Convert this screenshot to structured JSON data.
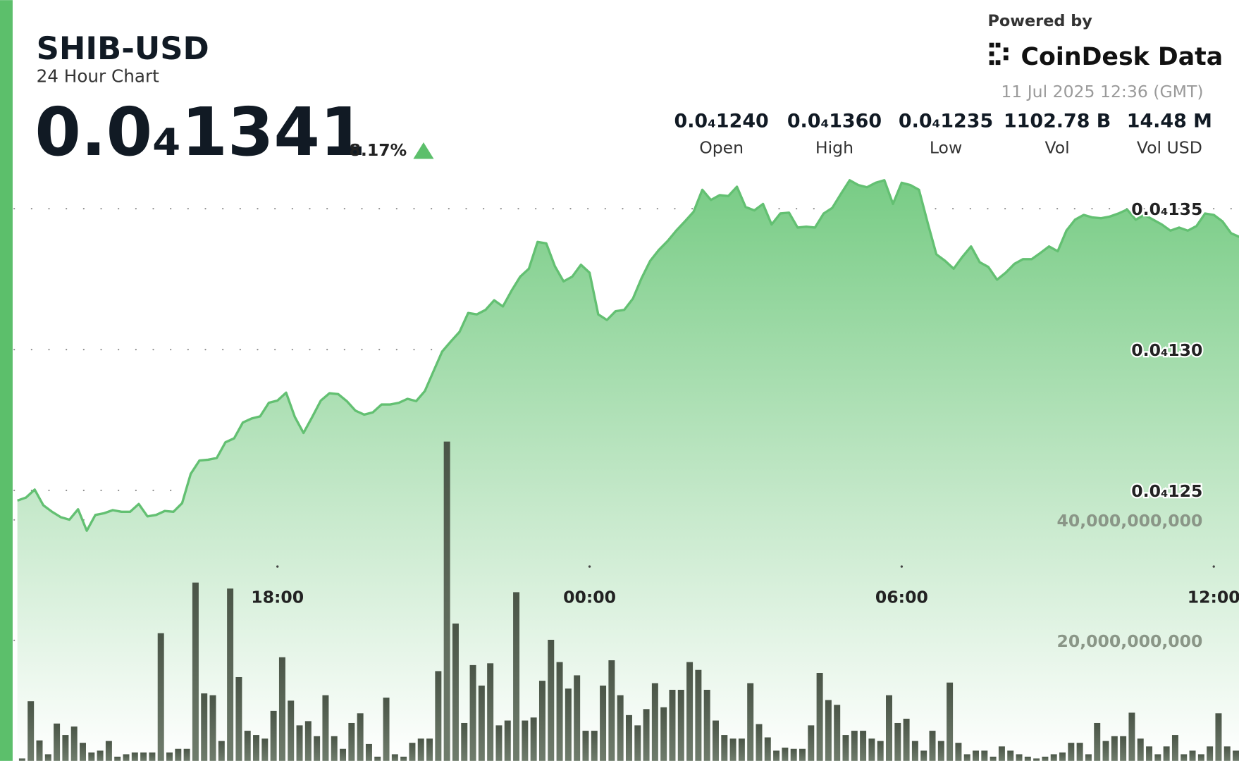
{
  "chart_data": {
    "type": "area",
    "title": "SHIB-USD",
    "subtitle": "24 Hour Chart",
    "price": "0.0₄1341",
    "change": "8.17%",
    "powered_by": "Powered by",
    "brand": "CoinDesk Data",
    "timestamp": "11 Jul 2025 12:36 (GMT)",
    "stats": [
      {
        "value": "0.0₄1240",
        "label": "Open"
      },
      {
        "value": "0.0₄1360",
        "label": "High"
      },
      {
        "value": "0.0₄1235",
        "label": "Low"
      },
      {
        "value": "1102.78 B",
        "label": "Vol"
      },
      {
        "value": "14.48 M",
        "label": "Vol USD"
      }
    ],
    "categories": [
      null,
      null,
      null,
      null,
      null,
      null,
      null,
      null,
      null,
      null,
      null,
      null,
      null,
      null,
      null,
      null,
      null,
      null,
      null,
      null,
      null,
      null,
      null,
      null,
      null,
      null,
      null,
      null,
      null,
      null,
      "18:00",
      null,
      null,
      null,
      null,
      null,
      null,
      null,
      null,
      null,
      null,
      null,
      null,
      null,
      null,
      null,
      null,
      null,
      null,
      null,
      null,
      null,
      null,
      null,
      null,
      null,
      null,
      null,
      null,
      null,
      null,
      null,
      null,
      null,
      null,
      null,
      "00:00",
      null,
      null,
      null,
      null,
      null,
      null,
      null,
      null,
      null,
      null,
      null,
      null,
      null,
      null,
      null,
      null,
      null,
      null,
      null,
      null,
      null,
      null,
      null,
      null,
      null,
      null,
      null,
      null,
      null,
      null,
      null,
      null,
      null,
      null,
      null,
      "06:00",
      null,
      null,
      null,
      null,
      null,
      null,
      null,
      null,
      null,
      null,
      null,
      null,
      null,
      null,
      null,
      null,
      null,
      null,
      null,
      null,
      null,
      null,
      null,
      null,
      null,
      null,
      null,
      null,
      null,
      null,
      null,
      null,
      null,
      null,
      null,
      "12:00",
      null,
      null,
      null
    ],
    "series": [
      {
        "type": "area",
        "color": "#63c072",
        "values": [
          1.2464e-05,
          1.2475e-05,
          1.2503e-05,
          1.2447e-05,
          1.2424e-05,
          1.2405e-05,
          1.2396e-05,
          1.2433e-05,
          1.2357e-05,
          1.2413e-05,
          1.2419e-05,
          1.243e-05,
          1.2424e-05,
          1.2424e-05,
          1.2452e-05,
          1.2408e-05,
          1.2413e-05,
          1.2427e-05,
          1.2424e-05,
          1.2455e-05,
          1.2559e-05,
          1.2606e-05,
          1.2609e-05,
          1.2615e-05,
          1.2671e-05,
          1.2685e-05,
          1.2741e-05,
          1.2755e-05,
          1.2763e-05,
          1.2811e-05,
          1.2819e-05,
          1.2847e-05,
          1.2761e-05,
          1.2704e-05,
          1.276e-05,
          1.2819e-05,
          1.2845e-05,
          1.2842e-05,
          1.2817e-05,
          1.2783e-05,
          1.2769e-05,
          1.2777e-05,
          1.2805e-05,
          1.2805e-05,
          1.2811e-05,
          1.2825e-05,
          1.2817e-05,
          1.2853e-05,
          1.2923e-05,
          1.2993e-05,
          1.3029e-05,
          1.3063e-05,
          1.313e-05,
          1.3125e-05,
          1.3141e-05,
          1.3175e-05,
          1.3153e-05,
          1.3209e-05,
          1.3259e-05,
          1.3287e-05,
          1.3382e-05,
          1.3377e-05,
          1.3296e-05,
          1.3242e-05,
          1.3259e-05,
          1.3301e-05,
          1.3273e-05,
          1.3125e-05,
          1.3105e-05,
          1.3136e-05,
          1.3141e-05,
          1.3181e-05,
          1.3254e-05,
          1.3315e-05,
          1.3354e-05,
          1.3385e-05,
          1.3422e-05,
          1.3455e-05,
          1.3489e-05,
          1.3567e-05,
          1.3531e-05,
          1.3548e-05,
          1.3545e-05,
          1.3578e-05,
          1.3506e-05,
          1.3494e-05,
          1.3517e-05,
          1.3444e-05,
          1.3483e-05,
          1.3486e-05,
          1.3433e-05,
          1.3436e-05,
          1.3433e-05,
          1.3483e-05,
          1.3503e-05,
          1.3553e-05,
          1.3601e-05,
          1.3584e-05,
          1.3576e-05,
          1.3592e-05,
          1.3601e-05,
          1.3517e-05,
          1.3592e-05,
          1.3584e-05,
          1.3567e-05,
          1.345e-05,
          1.3338e-05,
          1.3315e-05,
          1.3287e-05,
          1.3329e-05,
          1.3366e-05,
          1.331e-05,
          1.3293e-05,
          1.3248e-05,
          1.3273e-05,
          1.3304e-05,
          1.3321e-05,
          1.3321e-05,
          1.3343e-05,
          1.3366e-05,
          1.3349e-05,
          1.3422e-05,
          1.3461e-05,
          1.3478e-05,
          1.3469e-05,
          1.3466e-05,
          1.3472e-05,
          1.3483e-05,
          1.3497e-05,
          1.3461e-05,
          1.3478e-05,
          1.3461e-05,
          1.3444e-05,
          1.3422e-05,
          1.3433e-05,
          1.3422e-05,
          1.3438e-05,
          1.3483e-05,
          1.3478e-05,
          1.3455e-05,
          1.3413e-05,
          1.3399e-05
        ]
      },
      {
        "type": "bar",
        "color": "#4f5c4c",
        "axis": "y2",
        "values": [
          400000000.0,
          9900000000.0,
          3400000000.0,
          1100000000.0,
          6200000000.0,
          4300000000.0,
          5700000000.0,
          3000000000.0,
          1400000000.0,
          1700000000.0,
          3300000000.0,
          700000000.0,
          1100000000.0,
          1400000000.0,
          1400000000.0,
          1400000000.0,
          21200000000.0,
          1400000000.0,
          2000000000.0,
          2000000000.0,
          29600000000.0,
          11200000000.0,
          10900000000.0,
          3300000000.0,
          28600000000.0,
          13900000000.0,
          5000000000.0,
          4300000000.0,
          3700000000.0,
          8300000000.0,
          17200000000.0,
          10000000000.0,
          5900000000.0,
          6600000000.0,
          4100000000.0,
          10900000000.0,
          4100000000.0,
          2000000000.0,
          6300000000.0,
          7900000000.0,
          2800000000.0,
          700000000.0,
          10500000000.0,
          1100000000.0,
          700000000.0,
          3000000000.0,
          3700000000.0,
          3700000000.0,
          14900000000.0,
          53000000000.0,
          22800000000.0,
          6300000000.0,
          15900000000.0,
          12500000000.0,
          16200000000.0,
          5900000000.0,
          6700000000.0,
          28000000000.0,
          6700000000.0,
          7200000000.0,
          13300000000.0,
          20100000000.0,
          16400000000.0,
          12000000000.0,
          14200000000.0,
          5000000000.0,
          5000000000.0,
          12500000000.0,
          16700000000.0,
          10900000000.0,
          7600000000.0,
          5900000000.0,
          8600000000.0,
          12900000000.0,
          8900000000.0,
          11800000000.0,
          11800000000.0,
          16400000000.0,
          15100000000.0,
          11800000000.0,
          6700000000.0,
          4300000000.0,
          3700000000.0,
          3700000000.0,
          12900000000.0,
          6100000000.0,
          3900000000.0,
          1700000000.0,
          2200000000.0,
          2000000000.0,
          2000000000.0,
          5900000000.0,
          14600000000.0,
          10100000000.0,
          9300000000.0,
          4300000000.0,
          5000000000.0,
          5000000000.0,
          3700000000.0,
          3300000000.0,
          10900000000.0,
          6300000000.0,
          7000000000.0,
          3300000000.0,
          1700000000.0,
          5000000000.0,
          3300000000.0,
          13000000000.0,
          3000000000.0,
          1100000000.0,
          1700000000.0,
          1700000000.0,
          700000000.0,
          2400000000.0,
          1700000000.0,
          1100000000.0,
          700000000.0,
          400000000.0,
          700000000.0,
          1100000000.0,
          1400000000.0,
          3000000000.0,
          3000000000.0,
          1100000000.0,
          6300000000.0,
          3300000000.0,
          4100000000.0,
          4100000000.0,
          8000000000.0,
          3700000000.0,
          2400000000.0,
          1100000000.0,
          2400000000.0,
          4300000000.0,
          1100000000.0,
          1700000000.0,
          1100000000.0,
          2400000000.0,
          7900000000.0,
          2400000000.0,
          1700000000.0,
          3000000000.0
        ]
      }
    ],
    "ylim": [
      1.154e-05,
      1.37e-05
    ],
    "yticks": [
      {
        "value": 1.25e-05,
        "label": "0.0₄125"
      },
      {
        "value": 1.3e-05,
        "label": "0.0₄130"
      },
      {
        "value": 1.35e-05,
        "label": "0.0₄135"
      }
    ],
    "y2lim": [
      0,
      101000000000
    ],
    "y2ticks": [
      {
        "value": 20000000000,
        "label": "20,000,000,000"
      },
      {
        "value": 40000000000,
        "label": "40,000,000,000"
      }
    ],
    "grid": true
  }
}
